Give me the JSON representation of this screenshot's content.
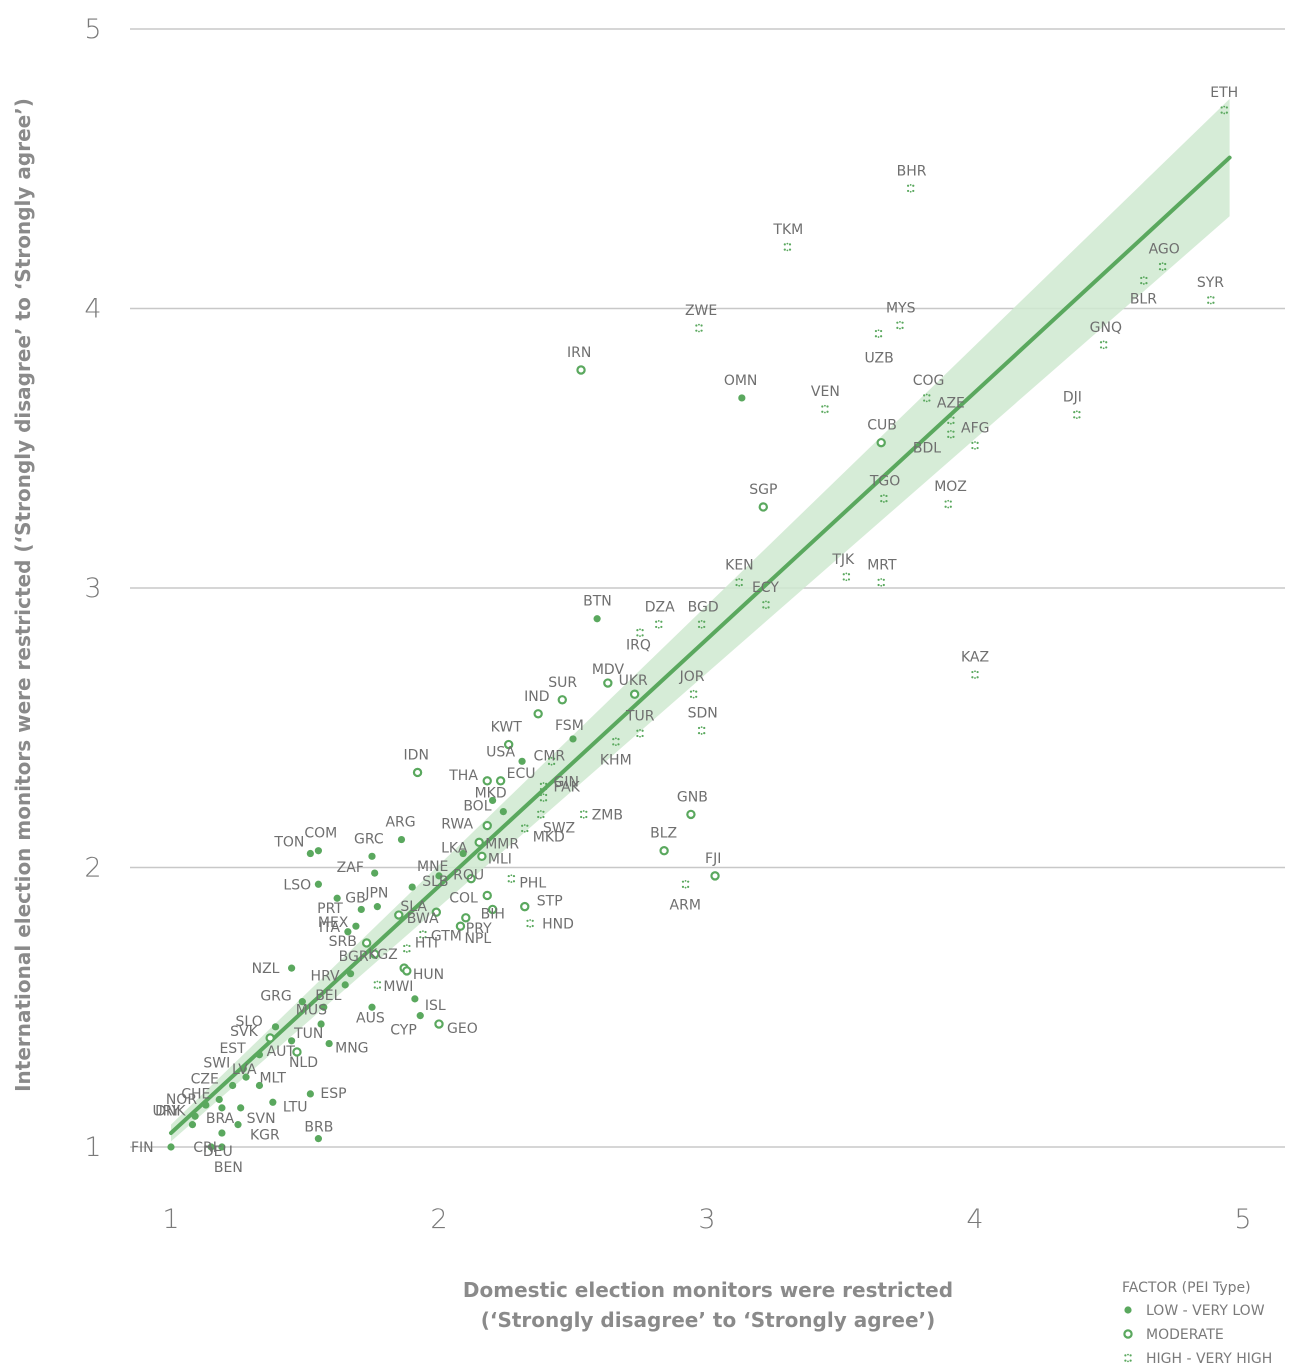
{
  "chart_data": {
    "type": "scatter",
    "xlabel_lines": [
      "Domestic election monitors were restricted",
      "(‘Strongly disagree’ to ‘Strongly agree’)"
    ],
    "ylabel": "International  election monitors were restricted (‘Strongly disagree’ to ‘Strongly agree’)",
    "xlim": [
      0.85,
      5.15
    ],
    "ylim": [
      0.95,
      5.05
    ],
    "x_ticks": [
      "1",
      "2",
      "3",
      "4",
      "5"
    ],
    "y_ticks": [
      "1",
      "2",
      "3",
      "4",
      "5"
    ],
    "grid": "horizontal",
    "color": "#5aa85e",
    "band_color": "#cfe9d0",
    "trend": {
      "x0": 1.0,
      "y0": 1.05,
      "x1": 4.95,
      "y1": 4.54,
      "band_low": [
        1.0,
        1.02,
        4.95,
        4.33
      ],
      "band_high": [
        1.0,
        1.08,
        4.95,
        4.75
      ]
    },
    "legend": {
      "title": "FACTOR (PEI Type)",
      "placement": "bottom-right",
      "items": [
        {
          "marker": "low",
          "label": "LOW - VERY LOW"
        },
        {
          "marker": "moderate",
          "label": "MODERATE"
        },
        {
          "marker": "high",
          "label": "HIGH - VERY HIGH"
        }
      ]
    },
    "points": [
      {
        "code": "ETH",
        "x": 4.93,
        "y": 4.71,
        "f": "high"
      },
      {
        "code": "BHR",
        "x": 3.76,
        "y": 4.43,
        "f": "high"
      },
      {
        "code": "TKM",
        "x": 3.3,
        "y": 4.22,
        "f": "high"
      },
      {
        "code": "AGO",
        "x": 4.7,
        "y": 4.15,
        "f": "high"
      },
      {
        "code": "BLR",
        "x": 4.63,
        "y": 4.1,
        "f": "high"
      },
      {
        "code": "SYR",
        "x": 4.88,
        "y": 4.03,
        "f": "high"
      },
      {
        "code": "ZWE",
        "x": 2.97,
        "y": 3.93,
        "f": "high"
      },
      {
        "code": "MYS",
        "x": 3.72,
        "y": 3.94,
        "f": "high"
      },
      {
        "code": "UZB",
        "x": 3.64,
        "y": 3.91,
        "f": "high"
      },
      {
        "code": "GNQ",
        "x": 4.48,
        "y": 3.87,
        "f": "high"
      },
      {
        "code": "IRN",
        "x": 2.53,
        "y": 3.78,
        "f": "moderate"
      },
      {
        "code": "OMN",
        "x": 3.13,
        "y": 3.68,
        "f": "low"
      },
      {
        "code": "COG",
        "x": 3.82,
        "y": 3.68,
        "f": "high"
      },
      {
        "code": "VEN",
        "x": 3.44,
        "y": 3.64,
        "f": "high"
      },
      {
        "code": "DJI",
        "x": 4.38,
        "y": 3.62,
        "f": "high"
      },
      {
        "code": "AZE",
        "x": 3.91,
        "y": 3.6,
        "f": "high"
      },
      {
        "code": "BDL",
        "x": 3.91,
        "y": 3.55,
        "f": "high"
      },
      {
        "code": "CUB",
        "x": 3.65,
        "y": 3.52,
        "f": "moderate"
      },
      {
        "code": "AFG",
        "x": 4.0,
        "y": 3.51,
        "f": "high"
      },
      {
        "code": "TGO",
        "x": 3.66,
        "y": 3.32,
        "f": "high"
      },
      {
        "code": "MOZ",
        "x": 3.9,
        "y": 3.3,
        "f": "high"
      },
      {
        "code": "SGP",
        "x": 3.21,
        "y": 3.29,
        "f": "moderate"
      },
      {
        "code": "TJK",
        "x": 3.52,
        "y": 3.04,
        "f": "high"
      },
      {
        "code": "KEN",
        "x": 3.12,
        "y": 3.02,
        "f": "high"
      },
      {
        "code": "MRT",
        "x": 3.65,
        "y": 3.02,
        "f": "high"
      },
      {
        "code": "ECY",
        "x": 3.22,
        "y": 2.94,
        "f": "high"
      },
      {
        "code": "BTN",
        "x": 2.59,
        "y": 2.89,
        "f": "low"
      },
      {
        "code": "DZA",
        "x": 2.82,
        "y": 2.87,
        "f": "high"
      },
      {
        "code": "BGD",
        "x": 2.98,
        "y": 2.87,
        "f": "high"
      },
      {
        "code": "IRQ",
        "x": 2.75,
        "y": 2.84,
        "f": "high"
      },
      {
        "code": "KAZ",
        "x": 4.0,
        "y": 2.69,
        "f": "high"
      },
      {
        "code": "MDV",
        "x": 2.63,
        "y": 2.66,
        "f": "moderate"
      },
      {
        "code": "UKR",
        "x": 2.73,
        "y": 2.62,
        "f": "moderate"
      },
      {
        "code": "JOR",
        "x": 2.95,
        "y": 2.62,
        "f": "high"
      },
      {
        "code": "SUR",
        "x": 2.46,
        "y": 2.6,
        "f": "moderate"
      },
      {
        "code": "IND",
        "x": 2.37,
        "y": 2.55,
        "f": "moderate"
      },
      {
        "code": "TUR",
        "x": 2.75,
        "y": 2.48,
        "f": "high"
      },
      {
        "code": "SDN",
        "x": 2.98,
        "y": 2.49,
        "f": "high"
      },
      {
        "code": "FSM",
        "x": 2.5,
        "y": 2.46,
        "f": "low"
      },
      {
        "code": "KHM",
        "x": 2.66,
        "y": 2.45,
        "f": "high"
      },
      {
        "code": "KWT",
        "x": 2.26,
        "y": 2.44,
        "f": "moderate"
      },
      {
        "code": "CMR",
        "x": 2.42,
        "y": 2.38,
        "f": "high"
      },
      {
        "code": "USA",
        "x": 2.31,
        "y": 2.38,
        "f": "low"
      },
      {
        "code": "IDN",
        "x": 1.92,
        "y": 2.34,
        "f": "moderate"
      },
      {
        "code": "THA",
        "x": 2.18,
        "y": 2.31,
        "f": "moderate"
      },
      {
        "code": "ECU",
        "x": 2.23,
        "y": 2.31,
        "f": "moderate"
      },
      {
        "code": "PAK",
        "x": 2.39,
        "y": 2.29,
        "f": "high"
      },
      {
        "code": "MKD",
        "x": 2.2,
        "y": 2.24,
        "f": "low"
      },
      {
        "code": "GIN",
        "x": 2.39,
        "y": 2.25,
        "f": "high"
      },
      {
        "code": "BOL",
        "x": 2.24,
        "y": 2.2,
        "f": "low"
      },
      {
        "code": "ZMB",
        "x": 2.54,
        "y": 2.19,
        "f": "high"
      },
      {
        "code": "SWZ",
        "x": 2.38,
        "y": 2.19,
        "f": "high"
      },
      {
        "code": "GNB",
        "x": 2.94,
        "y": 2.19,
        "f": "moderate"
      },
      {
        "code": "RWA",
        "x": 2.18,
        "y": 2.15,
        "f": "moderate"
      },
      {
        "code": "MKD",
        "x": 2.32,
        "y": 2.14,
        "f": "high"
      },
      {
        "code": "ARG",
        "x": 1.86,
        "y": 2.1,
        "f": "low"
      },
      {
        "code": "LKA",
        "x": 2.09,
        "y": 2.05,
        "f": "low"
      },
      {
        "code": "MMR",
        "x": 2.15,
        "y": 2.09,
        "f": "moderate"
      },
      {
        "code": "COM",
        "x": 1.55,
        "y": 2.06,
        "f": "low"
      },
      {
        "code": "BLZ",
        "x": 2.84,
        "y": 2.06,
        "f": "moderate"
      },
      {
        "code": "TON",
        "x": 1.52,
        "y": 2.05,
        "f": "low"
      },
      {
        "code": "GRC",
        "x": 1.75,
        "y": 2.04,
        "f": "low"
      },
      {
        "code": "MLI",
        "x": 2.16,
        "y": 2.04,
        "f": "moderate"
      },
      {
        "code": "FJI",
        "x": 3.03,
        "y": 1.97,
        "f": "moderate"
      },
      {
        "code": "MNE",
        "x": 2.0,
        "y": 1.97,
        "f": "low"
      },
      {
        "code": "ZAF",
        "x": 1.76,
        "y": 1.98,
        "f": "low"
      },
      {
        "code": "ROU",
        "x": 2.12,
        "y": 1.96,
        "f": "moderate"
      },
      {
        "code": "PHL",
        "x": 2.27,
        "y": 1.96,
        "f": "high"
      },
      {
        "code": "LSO",
        "x": 1.55,
        "y": 1.94,
        "f": "low"
      },
      {
        "code": "ARM",
        "x": 2.92,
        "y": 1.94,
        "f": "high"
      },
      {
        "code": "SLB",
        "x": 1.9,
        "y": 1.93,
        "f": "low"
      },
      {
        "code": "COL",
        "x": 2.18,
        "y": 1.9,
        "f": "moderate"
      },
      {
        "code": "PRT",
        "x": 1.62,
        "y": 1.89,
        "f": "low"
      },
      {
        "code": "GB",
        "x": 1.71,
        "y": 1.85,
        "f": "low"
      },
      {
        "code": "JPN",
        "x": 1.77,
        "y": 1.86,
        "f": "low"
      },
      {
        "code": "SLA",
        "x": 1.99,
        "y": 1.84,
        "f": "moderate"
      },
      {
        "code": "BIH",
        "x": 2.2,
        "y": 1.85,
        "f": "moderate"
      },
      {
        "code": "STP",
        "x": 2.32,
        "y": 1.86,
        "f": "moderate"
      },
      {
        "code": "ITA",
        "x": 1.69,
        "y": 1.79,
        "f": "low"
      },
      {
        "code": "BWA",
        "x": 1.85,
        "y": 1.83,
        "f": "moderate"
      },
      {
        "code": "PRY",
        "x": 2.1,
        "y": 1.82,
        "f": "moderate"
      },
      {
        "code": "HND",
        "x": 2.34,
        "y": 1.8,
        "f": "high"
      },
      {
        "code": "MEX",
        "x": 1.66,
        "y": 1.77,
        "f": "low"
      },
      {
        "code": "NPL",
        "x": 2.08,
        "y": 1.79,
        "f": "moderate"
      },
      {
        "code": "GTM",
        "x": 1.94,
        "y": 1.76,
        "f": "high"
      },
      {
        "code": "SRB",
        "x": 1.73,
        "y": 1.73,
        "f": "moderate"
      },
      {
        "code": "HTI",
        "x": 1.88,
        "y": 1.71,
        "f": "high"
      },
      {
        "code": "BGR",
        "x": 1.76,
        "y": 1.69,
        "f": "moderate"
      },
      {
        "code": "KGZ",
        "x": 1.87,
        "y": 1.64,
        "f": "moderate"
      },
      {
        "code": "HUN",
        "x": 1.88,
        "y": 1.63,
        "f": "moderate"
      },
      {
        "code": "NZL",
        "x": 1.45,
        "y": 1.64,
        "f": "low"
      },
      {
        "code": "HRV",
        "x": 1.67,
        "y": 1.62,
        "f": "low"
      },
      {
        "code": "BEL",
        "x": 1.65,
        "y": 1.58,
        "f": "low"
      },
      {
        "code": "MWI",
        "x": 1.77,
        "y": 1.58,
        "f": "high"
      },
      {
        "code": "GRG",
        "x": 1.49,
        "y": 1.52,
        "f": "low"
      },
      {
        "code": "MUS",
        "x": 1.57,
        "y": 1.5,
        "f": "low"
      },
      {
        "code": "ISL",
        "x": 1.91,
        "y": 1.53,
        "f": "low"
      },
      {
        "code": "SLO",
        "x": 1.39,
        "y": 1.43,
        "f": "low"
      },
      {
        "code": "TUN",
        "x": 1.56,
        "y": 1.44,
        "f": "low"
      },
      {
        "code": "AUS",
        "x": 1.75,
        "y": 1.5,
        "f": "low"
      },
      {
        "code": "CYP",
        "x": 1.93,
        "y": 1.47,
        "f": "low"
      },
      {
        "code": "GEO",
        "x": 2.0,
        "y": 1.44,
        "f": "moderate"
      },
      {
        "code": "SVK",
        "x": 1.37,
        "y": 1.39,
        "f": "moderate"
      },
      {
        "code": "AUT",
        "x": 1.45,
        "y": 1.38,
        "f": "low"
      },
      {
        "code": "NLD",
        "x": 1.47,
        "y": 1.34,
        "f": "moderate"
      },
      {
        "code": "EST",
        "x": 1.33,
        "y": 1.33,
        "f": "low"
      },
      {
        "code": "MNG",
        "x": 1.59,
        "y": 1.37,
        "f": "low"
      },
      {
        "code": "SWI",
        "x": 1.27,
        "y": 1.28,
        "f": "low"
      },
      {
        "code": "LVA",
        "x": 1.28,
        "y": 1.25,
        "f": "low"
      },
      {
        "code": "CZE",
        "x": 1.23,
        "y": 1.22,
        "f": "low"
      },
      {
        "code": "MLT",
        "x": 1.33,
        "y": 1.22,
        "f": "low"
      },
      {
        "code": "ESP",
        "x": 1.52,
        "y": 1.19,
        "f": "low"
      },
      {
        "code": "CHE",
        "x": 1.18,
        "y": 1.17,
        "f": "low"
      },
      {
        "code": "NOR",
        "x": 1.13,
        "y": 1.15,
        "f": "low"
      },
      {
        "code": "LTU",
        "x": 1.38,
        "y": 1.16,
        "f": "low"
      },
      {
        "code": "BRA",
        "x": 1.19,
        "y": 1.14,
        "f": "low"
      },
      {
        "code": "SVN",
        "x": 1.26,
        "y": 1.14,
        "f": "low"
      },
      {
        "code": "DNK",
        "x": 1.09,
        "y": 1.11,
        "f": "low"
      },
      {
        "code": "URY",
        "x": 1.08,
        "y": 1.08,
        "f": "low"
      },
      {
        "code": "KGR",
        "x": 1.25,
        "y": 1.08,
        "f": "low"
      },
      {
        "code": "DEU",
        "x": 1.19,
        "y": 1.05,
        "f": "low"
      },
      {
        "code": "BRB",
        "x": 1.55,
        "y": 1.03,
        "f": "low"
      },
      {
        "code": "FIN",
        "x": 1.0,
        "y": 1.0,
        "f": "low"
      },
      {
        "code": "CRI",
        "x": 1.15,
        "y": 1.0,
        "f": "low"
      },
      {
        "code": "BEN",
        "x": 1.19,
        "y": 1.0,
        "f": "low"
      }
    ]
  }
}
